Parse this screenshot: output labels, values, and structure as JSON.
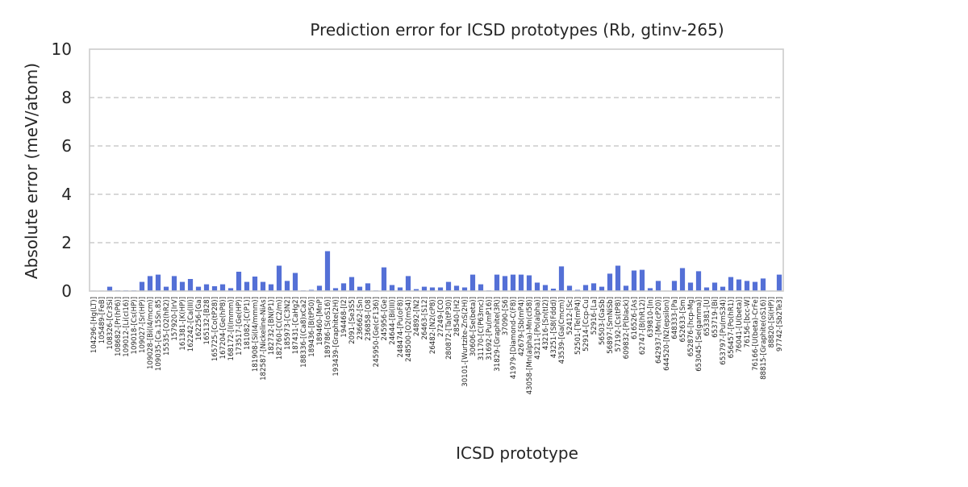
{
  "chart_data": {
    "type": "bar",
    "title": "Prediction error for ICSD prototypes (Rb, gtinv-265)",
    "xlabel": "ICSD prototype",
    "ylabel": "Absolute error (meV/atom)",
    "ylim": [
      0,
      10
    ],
    "yticks": [
      0,
      2,
      4,
      6,
      8,
      10
    ],
    "grid": "y-dashed",
    "bar_color": "#5470d6",
    "categories": [
      "104296-[Hg(LT)]",
      "105489-[FeB]",
      "108326-[Cr3Si]",
      "108682-[Pr(hP6)]",
      "109012-[Li(cI16)]",
      "109018-[Cs(HP)]",
      "109027-[Sr(HP)]",
      "109028-[Bi(I4/mcm)]",
      "109035-[Ca.15Sn.85]",
      "15535-[O2(hR2)]",
      "157920-[IrV]",
      "161381-[K(HP)]",
      "162242-[Ca(III)]",
      "162256-[Ga]",
      "165132-[B28]",
      "165725-[Co(tP28)]",
      "167204-[Ge(hP8)]",
      "168172-[I(Immm)]",
      "173517-[Ge(HP)]",
      "181082-[C(P1)]",
      "181908-[Si(I4/mmm)]",
      "182587-[Nickeline-NiAs]",
      "182732-[BN(P1)]",
      "182760-[C(C2/m)]",
      "185973-[C3N2]",
      "187431-[CaHg2]",
      "188336-[(Ca8)xCa2]",
      "189436-[B(tP50)]",
      "189460-[MnP]",
      "189786-[S(oS16)]",
      "193439-[Graphite(2H)]",
      "194468-[I2]",
      "2091-[Se3S5]",
      "236662-[Sn]",
      "236858-[O8]",
      "245950-[Ge(cF136)]",
      "245956-[Ge]",
      "24644-[Bi(III)]",
      "248474-[Pu(oF8)]",
      "248500-[O2(mS4)]",
      "24892-[N2]",
      "26463-[S12]",
      "26482-[N2(cP8)]",
      "27249-[CO]",
      "280872-[Ta(tP30)]",
      "28540-[H2]",
      "30101-[Wurtzite-ZnS(2H)]",
      "30606-[Se(beta)]",
      "31170-[C(P63mc)]",
      "31692-[Pu(mP16)]",
      "31829-[Graphite(3R)]",
      "37090-[S6]",
      "41979-[Diamond-C(F8)]",
      "42679-[Sb(mP4)]",
      "43058-[Mn(alpha)-Mn(cI58)]",
      "43211-[Po(alpha)]",
      "43216-[Sn(tI2)]",
      "43251-[S8(Fddd)]",
      "43539-[Ga(Cmcm)]",
      "52412-[Sc]",
      "52501-[Te(mP4)]",
      "52914-[Ccp-Cu]",
      "52916-[La]",
      "56503-[GaSb]",
      "56897-[SmNiSb]",
      "57192-[Cs(tP8)]",
      "609832-[P(black)]",
      "616526-[As]",
      "62747-[B(hR12)]",
      "639810-[In]",
      "642937-[Mn(cP20)]",
      "644520-[N2(epsilon)]",
      "648333-[Pa]",
      "652633-[Sm]",
      "652876-[hcp-Mg]",
      "653045-[Se(gamma)]",
      "653381-[U]",
      "653719-[Bi]",
      "653797-[Pu(mS34)]",
      "656457-[Po(hR1)]",
      "76041-[U(beta)]",
      "76156-[bcc-W]",
      "76166-[U(beta)-CrFe]",
      "88815-[Graphite(oS16)]",
      "88820-[Si(HP)]",
      "97742-[Sb2Te3]"
    ],
    "values": [
      0.02,
      0.02,
      0.18,
      0.03,
      0.03,
      0.03,
      0.38,
      0.62,
      0.68,
      0.18,
      0.62,
      0.38,
      0.5,
      0.18,
      0.28,
      0.2,
      0.28,
      0.12,
      0.8,
      0.38,
      0.6,
      0.38,
      0.28,
      1.05,
      0.42,
      0.75,
      0.03,
      0.05,
      0.22,
      1.65,
      0.12,
      0.32,
      0.58,
      0.18,
      0.32,
      0.03,
      0.98,
      0.25,
      0.15,
      0.62,
      0.08,
      0.18,
      0.15,
      0.15,
      0.38,
      0.22,
      0.15,
      0.68,
      0.28,
      0.03,
      0.68,
      0.62,
      0.68,
      0.68,
      0.65,
      0.35,
      0.25,
      0.1,
      1.02,
      0.22,
      0.05,
      0.25,
      0.32,
      0.18,
      0.72,
      1.05,
      0.22,
      0.85,
      0.88,
      0.12,
      0.42,
      0.02,
      0.42,
      0.95,
      0.35,
      0.82,
      0.15,
      0.35,
      0.18,
      0.58,
      0.48,
      0.42,
      0.38,
      0.52,
      0.02,
      0.68
    ]
  }
}
